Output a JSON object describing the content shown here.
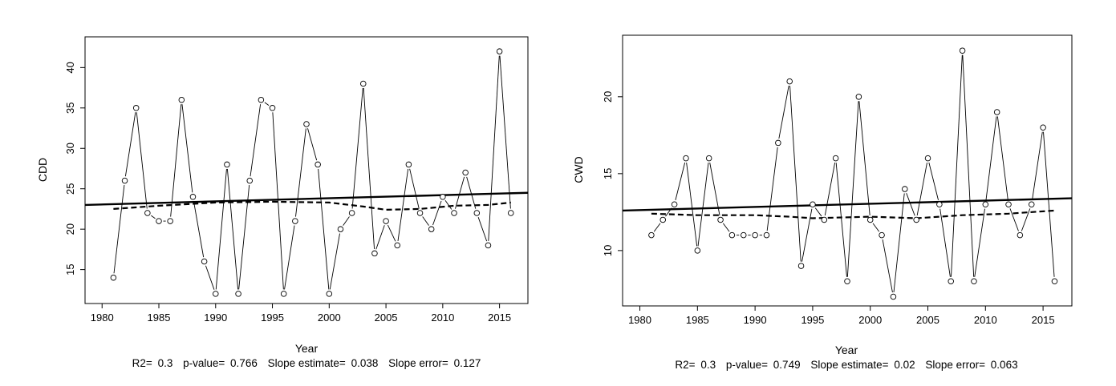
{
  "chart_data": [
    {
      "type": "line",
      "xlabel": "Year",
      "ylabel": "CDD",
      "xlim": [
        1978.5,
        2017.5
      ],
      "ylim": [
        10.8,
        43.8
      ],
      "xticks": [
        1980,
        1985,
        1990,
        1995,
        2000,
        2005,
        2010,
        2015
      ],
      "yticks": [
        15,
        20,
        25,
        30,
        35,
        40
      ],
      "grid": false,
      "legend": "none",
      "series": [
        {
          "style": "solid line with open circles",
          "x": [
            1981,
            1982,
            1983,
            1984,
            1985,
            1986,
            1987,
            1988,
            1989,
            1990,
            1991,
            1992,
            1993,
            1994,
            1995,
            1996,
            1997,
            1998,
            1999,
            2000,
            2001,
            2002,
            2003,
            2004,
            2005,
            2006,
            2007,
            2008,
            2009,
            2010,
            2011,
            2012,
            2013,
            2014,
            2015,
            2016
          ],
          "values": [
            14,
            26,
            35,
            22,
            21,
            21,
            36,
            24,
            16,
            12,
            28,
            12,
            26,
            36,
            35,
            12,
            21,
            33,
            28,
            12,
            20,
            22,
            38,
            17,
            21,
            18,
            28,
            22,
            20,
            24,
            22,
            27,
            22,
            18,
            42,
            22
          ]
        },
        {
          "style": "solid trend line",
          "x": [
            1978.5,
            2017.5
          ],
          "values": [
            23.0,
            24.5
          ]
        },
        {
          "style": "dashed smooth",
          "x": [
            1981,
            1985,
            1990,
            1995,
            2000,
            2003,
            2005,
            2008,
            2011,
            2014,
            2016
          ],
          "values": [
            22.5,
            22.9,
            23.3,
            23.4,
            23.3,
            22.8,
            22.4,
            22.5,
            22.9,
            23.0,
            23.3
          ]
        }
      ],
      "stats": {
        "r2_label": "R2=",
        "r2": "0.3",
        "pvalue_label": "p-value=",
        "pvalue": "0.766",
        "slope_label": "Slope estimate=",
        "slope": "0.038",
        "slope_error_label": "Slope error=",
        "slope_error": "0.127"
      }
    },
    {
      "type": "line",
      "xlabel": "Year",
      "ylabel": "CWD",
      "xlim": [
        1978.5,
        2017.5
      ],
      "ylim": [
        6.4,
        24.0
      ],
      "xticks": [
        1980,
        1985,
        1990,
        1995,
        2000,
        2005,
        2010,
        2015
      ],
      "yticks": [
        10,
        15,
        20
      ],
      "grid": false,
      "legend": "none",
      "series": [
        {
          "style": "solid line with open circles",
          "x": [
            1981,
            1982,
            1983,
            1984,
            1985,
            1986,
            1987,
            1988,
            1989,
            1990,
            1991,
            1992,
            1993,
            1994,
            1995,
            1996,
            1997,
            1998,
            1999,
            2000,
            2001,
            2002,
            2003,
            2004,
            2005,
            2006,
            2007,
            2008,
            2009,
            2010,
            2011,
            2012,
            2013,
            2014,
            2015,
            2016
          ],
          "values": [
            11,
            12,
            13,
            16,
            10,
            16,
            12,
            11,
            11,
            11,
            11,
            17,
            21,
            9,
            13,
            12,
            16,
            8,
            20,
            12,
            11,
            7,
            14,
            12,
            16,
            13,
            8,
            23,
            8,
            13,
            19,
            13,
            11,
            13,
            18,
            8
          ]
        },
        {
          "style": "solid trend line",
          "x": [
            1978.5,
            2017.5
          ],
          "values": [
            12.6,
            13.4
          ]
        },
        {
          "style": "dashed smooth",
          "x": [
            1981,
            1985,
            1990,
            1993,
            1995,
            2000,
            2004,
            2008,
            2012,
            2016
          ],
          "values": [
            12.4,
            12.3,
            12.3,
            12.2,
            12.1,
            12.2,
            12.1,
            12.3,
            12.4,
            12.6
          ]
        }
      ],
      "stats": {
        "r2_label": "R2=",
        "r2": "0.3",
        "pvalue_label": "p-value=",
        "pvalue": "0.749",
        "slope_label": "Slope estimate=",
        "slope": "0.02",
        "slope_error_label": "Slope error=",
        "slope_error": "0.063"
      }
    }
  ]
}
